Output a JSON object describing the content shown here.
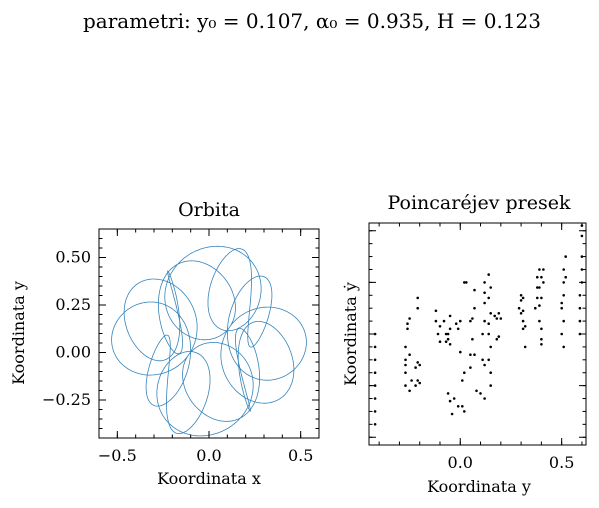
{
  "suptitle": "parametri: y₀ = 0.107, α₀ = 0.935, H = 0.123",
  "chart_data": [
    {
      "type": "line",
      "title": "Orbita",
      "xlabel": "Koordinata x",
      "ylabel": "Koordinata y",
      "xlim": [
        -0.6,
        0.6
      ],
      "ylim": [
        -0.45,
        0.65
      ],
      "xticks": [
        -0.5,
        0.0,
        0.5
      ],
      "xtick_labels": [
        "−0.5",
        "0.0",
        "0.5"
      ],
      "yticks": [
        -0.25,
        0.0,
        0.25,
        0.5
      ],
      "ytick_labels": [
        "−0.25",
        "0.00",
        "0.25",
        "0.50"
      ],
      "color": "#1f77b4",
      "grid": false
    },
    {
      "type": "scatter",
      "title": "Poincaréjev presek",
      "xlabel": "Koordinata y",
      "ylabel": "Koordinata ẏ",
      "xlim": [
        -0.45,
        0.62
      ],
      "ylim": [
        -0.43,
        0.43
      ],
      "xticks": [
        0.0,
        0.5
      ],
      "xtick_labels": [
        "0.0",
        "0.5"
      ],
      "color": "#000000",
      "grid": false,
      "points": [
        [
          -0.42,
          -0.3
        ],
        [
          -0.42,
          -0.25
        ],
        [
          -0.42,
          -0.2
        ],
        [
          -0.42,
          -0.15
        ],
        [
          -0.42,
          -0.1
        ],
        [
          -0.42,
          -0.05
        ],
        [
          -0.42,
          0.0
        ],
        [
          -0.42,
          -0.35
        ],
        [
          -0.27,
          -0.2
        ],
        [
          -0.27,
          -0.15
        ],
        [
          -0.27,
          -0.1
        ],
        [
          -0.27,
          -0.05
        ],
        [
          -0.26,
          0.02
        ],
        [
          -0.26,
          0.04
        ],
        [
          -0.27,
          -0.12
        ],
        [
          -0.25,
          -0.22
        ],
        [
          -0.24,
          -0.18
        ],
        [
          -0.25,
          -0.08
        ],
        [
          -0.25,
          0.06
        ],
        [
          -0.22,
          -0.2
        ],
        [
          -0.21,
          -0.18
        ],
        [
          -0.2,
          -0.19
        ],
        [
          -0.22,
          -0.13
        ],
        [
          -0.21,
          -0.11
        ],
        [
          -0.2,
          -0.12
        ],
        [
          -0.21,
          0.1
        ],
        [
          -0.21,
          0.14
        ],
        [
          -0.12,
          0.09
        ],
        [
          -0.12,
          0.05
        ],
        [
          -0.1,
          0.03
        ],
        [
          -0.11,
          0.0
        ],
        [
          -0.1,
          -0.03
        ],
        [
          -0.08,
          0.05
        ],
        [
          -0.07,
          -0.03
        ],
        [
          -0.06,
          -0.23
        ],
        [
          -0.05,
          -0.26
        ],
        [
          -0.05,
          0.07
        ],
        [
          -0.04,
          -0.31
        ],
        [
          -0.06,
          0.0
        ],
        [
          -0.05,
          0.02
        ],
        [
          -0.07,
          0.0
        ],
        [
          -0.06,
          -0.02
        ],
        [
          -0.05,
          -0.04
        ],
        [
          -0.02,
          0.04
        ],
        [
          0.0,
          0.05
        ],
        [
          0.0,
          -0.07
        ],
        [
          -0.01,
          0.02
        ],
        [
          0.02,
          -0.15
        ],
        [
          0.02,
          0.2
        ],
        [
          0.03,
          0.2
        ],
        [
          -0.03,
          -0.25
        ],
        [
          -0.01,
          -0.28
        ],
        [
          0.01,
          -0.28
        ],
        [
          0.02,
          -0.3
        ],
        [
          0.01,
          -0.18
        ],
        [
          0.05,
          0.05
        ],
        [
          0.06,
          0.06
        ],
        [
          0.06,
          -0.02
        ],
        [
          0.05,
          -0.08
        ],
        [
          0.07,
          -0.08
        ],
        [
          0.05,
          -0.13
        ],
        [
          0.07,
          0.17
        ],
        [
          0.07,
          0.1
        ],
        [
          0.08,
          -0.22
        ],
        [
          0.12,
          0.2
        ],
        [
          0.12,
          0.16
        ],
        [
          0.12,
          0.12
        ],
        [
          0.12,
          0.05
        ],
        [
          0.11,
          -0.1
        ],
        [
          0.12,
          -0.12
        ],
        [
          0.1,
          -0.23
        ],
        [
          0.12,
          -0.25
        ],
        [
          0.11,
          0.0
        ],
        [
          0.14,
          0.23
        ],
        [
          0.15,
          0.18
        ],
        [
          0.14,
          0.14
        ],
        [
          0.15,
          0.08
        ],
        [
          0.14,
          0.04
        ],
        [
          0.14,
          0.0
        ],
        [
          0.15,
          -0.05
        ],
        [
          0.14,
          -0.1
        ],
        [
          0.15,
          -0.15
        ],
        [
          0.15,
          -0.2
        ],
        [
          0.17,
          0.07
        ],
        [
          0.18,
          0.06
        ],
        [
          0.19,
          0.08
        ],
        [
          0.19,
          -0.01
        ],
        [
          0.18,
          -0.02
        ],
        [
          0.2,
          0.06
        ],
        [
          0.29,
          0.1
        ],
        [
          0.3,
          0.13
        ],
        [
          0.3,
          0.15
        ],
        [
          0.31,
          0.14
        ],
        [
          0.31,
          0.05
        ],
        [
          0.31,
          0.02
        ],
        [
          0.32,
          -0.05
        ],
        [
          0.31,
          0.09
        ],
        [
          0.32,
          0.03
        ],
        [
          0.3,
          0.08
        ],
        [
          0.37,
          0.1
        ],
        [
          0.38,
          0.14
        ],
        [
          0.38,
          0.18
        ],
        [
          0.38,
          0.22
        ],
        [
          0.39,
          0.25
        ],
        [
          0.39,
          0.18
        ],
        [
          0.39,
          0.11
        ],
        [
          0.4,
          0.02
        ],
        [
          0.4,
          -0.02
        ],
        [
          0.4,
          -0.04
        ],
        [
          0.39,
          0.05
        ],
        [
          0.41,
          0.2
        ],
        [
          0.41,
          0.25
        ],
        [
          0.4,
          0.14
        ],
        [
          0.4,
          0.22
        ],
        [
          0.5,
          0.1
        ],
        [
          0.51,
          0.15
        ],
        [
          0.51,
          0.2
        ],
        [
          0.51,
          0.25
        ],
        [
          0.52,
          0.3
        ],
        [
          0.51,
          0.05
        ],
        [
          0.5,
          0.0
        ],
        [
          0.51,
          -0.05
        ],
        [
          0.52,
          0.22
        ],
        [
          0.5,
          0.12
        ],
        [
          0.59,
          0.05
        ],
        [
          0.59,
          0.1
        ],
        [
          0.59,
          0.15
        ],
        [
          0.6,
          0.2
        ],
        [
          0.6,
          0.3
        ],
        [
          0.6,
          0.38
        ],
        [
          0.6,
          0.42
        ],
        [
          0.59,
          0.0
        ],
        [
          0.6,
          0.25
        ]
      ]
    }
  ]
}
